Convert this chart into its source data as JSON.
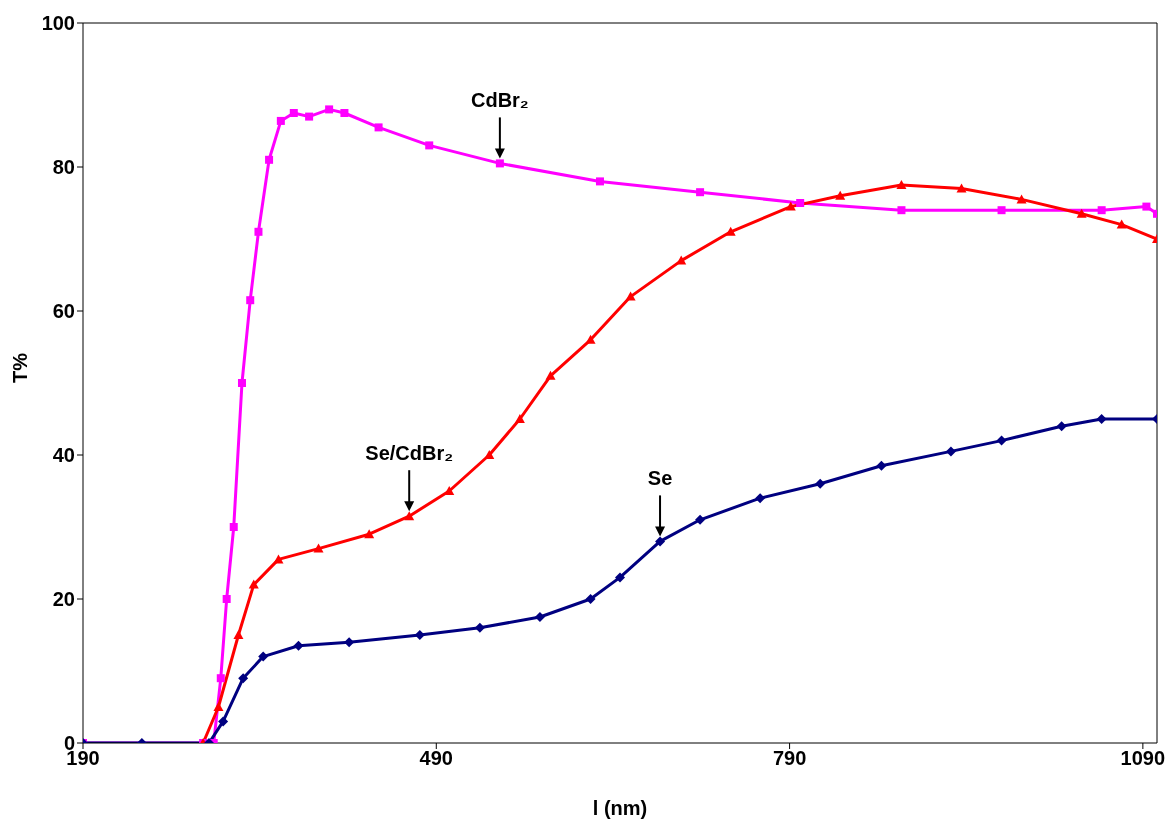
{
  "chart_data": {
    "type": "line",
    "xlabel": "l (nm)",
    "ylabel": "T%",
    "xlim": [
      190,
      1102
    ],
    "xticks": [
      190,
      490,
      790,
      1090
    ],
    "ylim": [
      0,
      100
    ],
    "yticks": [
      0,
      20,
      40,
      60,
      80,
      100
    ],
    "grid": false,
    "legend": false,
    "series": [
      {
        "color": "#ff00ff",
        "marker": "square",
        "x": [
          190,
          292,
          301,
          307,
          312,
          318,
          325,
          332,
          339,
          348,
          358,
          369,
          382,
          399,
          412,
          441,
          484,
          544,
          629,
          714,
          799,
          885,
          970,
          1055,
          1093,
          1102
        ],
        "values": [
          0,
          0,
          0,
          9,
          20,
          30,
          50,
          61.5,
          71,
          81,
          86.4,
          87.5,
          87,
          88,
          87.5,
          85.5,
          83,
          80.5,
          78,
          76.5,
          75,
          74,
          74,
          74,
          74.5,
          73.5
        ]
      },
      {
        "color": "#ff0000",
        "marker": "triangle",
        "x": [
          292,
          305,
          322,
          335,
          356,
          390,
          433,
          467,
          501,
          535,
          561,
          587,
          621,
          655,
          698,
          740,
          791,
          833,
          885,
          936,
          987,
          1038,
          1072,
          1102
        ],
        "values": [
          0,
          5,
          15,
          22,
          25.5,
          27,
          29,
          31.5,
          35,
          40,
          45,
          51,
          56,
          62,
          67,
          71,
          74.5,
          76,
          77.5,
          77,
          75.5,
          73.5,
          72,
          70
        ]
      },
      {
        "color": "#000080",
        "marker": "diamond",
        "x": [
          190,
          240,
          297,
          309,
          326,
          343,
          373,
          416,
          476,
          527,
          578,
          621,
          646,
          680,
          714,
          765,
          816,
          868,
          927,
          970,
          1021,
          1055,
          1102
        ],
        "values": [
          0,
          0,
          0,
          3,
          9,
          12,
          13.5,
          14,
          15,
          16,
          17.5,
          20,
          23,
          28,
          31,
          34,
          36,
          38.5,
          40.5,
          42,
          44,
          45,
          45
        ]
      }
    ],
    "annotations": [
      {
        "text": "CdBr₂",
        "x": 544,
        "y": 80.5
      },
      {
        "text": "Se/CdBr₂",
        "x": 467,
        "y": 31.5
      },
      {
        "text": "Se",
        "x": 680,
        "y": 28
      }
    ]
  }
}
